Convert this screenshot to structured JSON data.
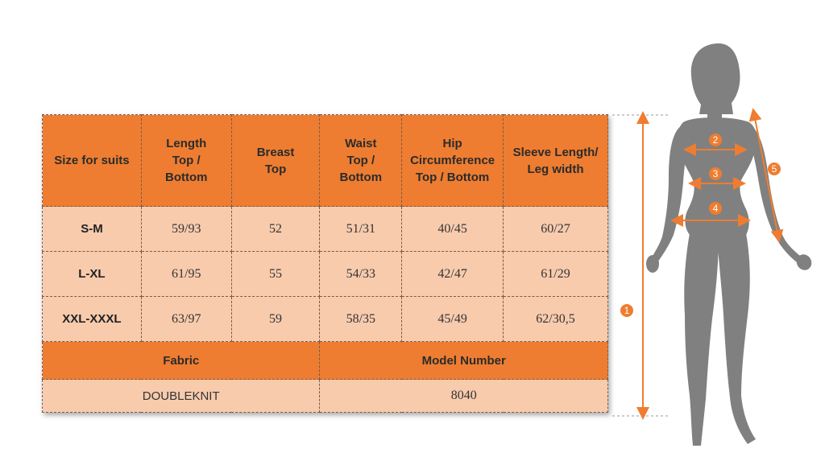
{
  "table": {
    "headers": [
      "Size for suits",
      "Length\nTop /\nBottom",
      "Breast\nTop",
      "Waist\nTop /\nBottom",
      "Hip\nCircumference\nTop / Bottom",
      "Sleeve Length/\nLeg width"
    ],
    "rows": [
      {
        "size": "S-M",
        "length": "59/93",
        "breast": "52",
        "waist": "51/31",
        "hip": "40/45",
        "sleeve": "60/27"
      },
      {
        "size": "L-XL",
        "length": "61/95",
        "breast": "55",
        "waist": "54/33",
        "hip": "42/47",
        "sleeve": "61/29"
      },
      {
        "size": "XXL-XXXL",
        "length": "63/97",
        "breast": "59",
        "waist": "58/35",
        "hip": "45/49",
        "sleeve": "62/30,5"
      }
    ],
    "fabric_label": "Fabric",
    "model_label": "Model Number",
    "fabric_value": "DOUBLEKNIT",
    "model_value": "8040"
  },
  "figure": {
    "markers": [
      "1",
      "2",
      "3",
      "4",
      "5"
    ]
  },
  "colors": {
    "accent_orange": "#ee7d31",
    "peach": "#f8cbad",
    "silhouette": "#808080"
  }
}
